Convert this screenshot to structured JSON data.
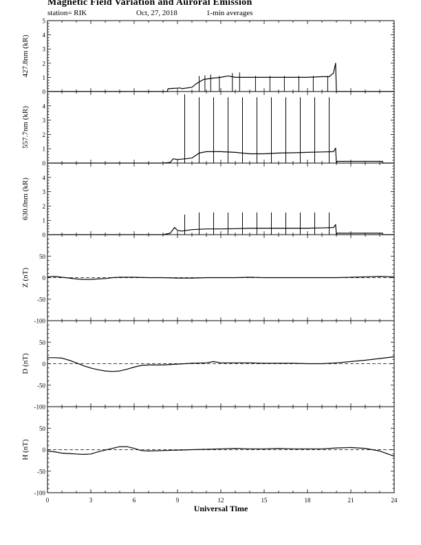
{
  "chart_data": {
    "title": "Magnetic Field Variation and Auroral Emission",
    "station": "station= RIK",
    "date": "Oct, 27, 2018",
    "averaging": "1-min averages",
    "xlabel": "Universal Time",
    "xlim": [
      0,
      24
    ],
    "xticks": [
      "0",
      "3",
      "6",
      "9",
      "12",
      "15",
      "18",
      "21",
      "24"
    ],
    "panels": [
      {
        "type": "line",
        "ylabel": "427.8nm (kR)",
        "ylim": [
          0,
          5
        ],
        "yticks": [
          "0",
          "1",
          "2",
          "3",
          "4",
          "5"
        ],
        "baseline_dashed": false,
        "series": [
          {
            "x": [
              0,
              8.3,
              8.35,
              9.2,
              9.3,
              10.0,
              10.3,
              10.8,
              11.5,
              12.0,
              12.5,
              13.0,
              13.5,
              15,
              17,
              18,
              19.0,
              19.5,
              19.8,
              19.95,
              20.0,
              24
            ],
            "y": [
              0,
              0,
              0.2,
              0.25,
              0.2,
              0.3,
              0.55,
              0.85,
              0.95,
              1.0,
              1.1,
              1.0,
              1.0,
              1.0,
              1.0,
              1.0,
              1.05,
              1.05,
              1.3,
              2.0,
              0,
              0
            ]
          }
        ],
        "spikes": [
          {
            "x": 10.5,
            "y": 1.1
          },
          {
            "x": 10.9,
            "y": 1.15
          },
          {
            "x": 11.3,
            "y": 1.2
          },
          {
            "x": 11.9,
            "y": 1.1
          },
          {
            "x": 12.8,
            "y": 1.3
          },
          {
            "x": 13.3,
            "y": 1.35
          },
          {
            "x": 14.4,
            "y": 1.1
          },
          {
            "x": 15.4,
            "y": 1.1
          },
          {
            "x": 16.4,
            "y": 1.1
          },
          {
            "x": 17.4,
            "y": 1.1
          },
          {
            "x": 18.4,
            "y": 1.1
          },
          {
            "x": 19.4,
            "y": 1.1
          }
        ]
      },
      {
        "type": "line",
        "ylabel": "557.7nm (kR)",
        "ylim": [
          0,
          5
        ],
        "yticks": [
          "0",
          "1",
          "2",
          "3",
          "4"
        ],
        "baseline_dashed": false,
        "series": [
          {
            "x": [
              0,
              8.0,
              8.5,
              8.7,
              9.0,
              9.5,
              10.0,
              10.5,
              11.0,
              12.0,
              13.0,
              14.0,
              15.0,
              16.0,
              17.0,
              18.0,
              19.0,
              19.8,
              19.95,
              20.0,
              20.05,
              23.2,
              23.2,
              24
            ],
            "y": [
              0,
              0,
              0.05,
              0.3,
              0.25,
              0.3,
              0.35,
              0.7,
              0.8,
              0.8,
              0.75,
              0.65,
              0.65,
              0.7,
              0.72,
              0.75,
              0.78,
              0.8,
              1.05,
              0,
              0.12,
              0.12,
              0,
              0
            ]
          }
        ],
        "spikes": [
          {
            "x": 9.5,
            "y": 4.8
          },
          {
            "x": 10.5,
            "y": 4.6
          },
          {
            "x": 11.5,
            "y": 4.6
          },
          {
            "x": 12.5,
            "y": 4.6
          },
          {
            "x": 13.5,
            "y": 4.6
          },
          {
            "x": 14.5,
            "y": 4.6
          },
          {
            "x": 15.5,
            "y": 4.6
          },
          {
            "x": 16.5,
            "y": 4.6
          },
          {
            "x": 17.5,
            "y": 4.6
          },
          {
            "x": 18.5,
            "y": 4.6
          },
          {
            "x": 19.5,
            "y": 4.6
          }
        ]
      },
      {
        "type": "line",
        "ylabel": "630.0nm (kR)",
        "ylim": [
          0,
          5
        ],
        "yticks": [
          "0",
          "1",
          "2",
          "3",
          "4"
        ],
        "baseline_dashed": false,
        "series": [
          {
            "x": [
              0,
              8.0,
              8.5,
              8.8,
              9.0,
              9.3,
              10.0,
              11.0,
              12.0,
              13.0,
              14.0,
              15.0,
              16.0,
              17.0,
              18.0,
              19.0,
              19.8,
              19.95,
              20.0,
              20.05,
              23.2,
              23.2,
              24
            ],
            "y": [
              0,
              0,
              0.1,
              0.5,
              0.3,
              0.25,
              0.35,
              0.4,
              0.4,
              0.42,
              0.45,
              0.45,
              0.45,
              0.45,
              0.45,
              0.47,
              0.5,
              0.7,
              0,
              0.1,
              0.1,
              0,
              0
            ]
          }
        ],
        "spikes": [
          {
            "x": 9.5,
            "y": 1.4
          },
          {
            "x": 10.5,
            "y": 1.55
          },
          {
            "x": 11.5,
            "y": 1.55
          },
          {
            "x": 12.5,
            "y": 1.55
          },
          {
            "x": 13.5,
            "y": 1.55
          },
          {
            "x": 14.5,
            "y": 1.55
          },
          {
            "x": 15.5,
            "y": 1.55
          },
          {
            "x": 16.5,
            "y": 1.55
          },
          {
            "x": 17.5,
            "y": 1.55
          },
          {
            "x": 18.5,
            "y": 1.55
          },
          {
            "x": 19.5,
            "y": 1.55
          }
        ]
      },
      {
        "type": "line",
        "ylabel": "Z (nT)",
        "ylim": [
          -100,
          100
        ],
        "yticks": [
          "-100",
          "-50",
          "0",
          "50"
        ],
        "baseline_dashed": true,
        "series": [
          {
            "x": [
              0,
              0.5,
              1,
              1.5,
              2,
              2.5,
              3,
              3.5,
              4,
              4.5,
              5,
              5.5,
              6,
              7,
              8,
              9,
              10,
              11,
              12,
              13,
              14,
              15,
              16,
              17,
              18,
              19,
              20,
              21,
              22,
              23,
              24
            ],
            "y": [
              2,
              3,
              1,
              -1,
              -3,
              -4,
              -4,
              -3,
              -2,
              0,
              1,
              1,
              1,
              0,
              0,
              -1,
              -1,
              0,
              0,
              0,
              1,
              0,
              0,
              0,
              0,
              0,
              0,
              1,
              2,
              3,
              2
            ]
          }
        ],
        "spikes": []
      },
      {
        "type": "line",
        "ylabel": "D (nT)",
        "ylim": [
          -100,
          100
        ],
        "yticks": [
          "-100",
          "-50",
          "0",
          "50"
        ],
        "baseline_dashed": true,
        "series": [
          {
            "x": [
              0,
              0.5,
              1,
              1.5,
              2,
              2.5,
              3,
              3.5,
              4,
              4.5,
              5,
              5.5,
              6,
              6.5,
              7,
              8,
              9,
              10,
              11,
              11.5,
              12,
              13,
              14,
              15,
              16,
              17,
              18,
              19,
              20,
              21,
              22,
              23,
              24
            ],
            "y": [
              14,
              14,
              13,
              8,
              2,
              -5,
              -10,
              -14,
              -17,
              -18,
              -17,
              -13,
              -8,
              -4,
              -3,
              -3,
              -1,
              1,
              2,
              5,
              2,
              2,
              2,
              1,
              1,
              1,
              0,
              0,
              2,
              5,
              8,
              12,
              16
            ]
          }
        ],
        "spikes": []
      },
      {
        "type": "line",
        "ylabel": "H (nT)",
        "ylim": [
          -100,
          100
        ],
        "yticks": [
          "-100",
          "-50",
          "0",
          "50"
        ],
        "baseline_dashed": true,
        "series": [
          {
            "x": [
              0,
              0.5,
              1,
              1.5,
              2,
              2.5,
              3,
              3.5,
              4,
              4.5,
              5,
              5.5,
              6,
              6.5,
              7,
              8,
              9,
              10,
              11,
              12,
              13,
              14,
              15,
              16,
              17,
              18,
              19,
              20,
              21,
              22,
              23,
              24
            ],
            "y": [
              -3,
              -5,
              -8,
              -9,
              -10,
              -11,
              -10,
              -5,
              -1,
              3,
              7,
              7,
              3,
              -2,
              -3,
              -2,
              -1,
              0,
              1,
              2,
              3,
              2,
              2,
              3,
              2,
              2,
              2,
              4,
              5,
              3,
              -3,
              -15
            ]
          }
        ],
        "spikes": []
      }
    ]
  }
}
